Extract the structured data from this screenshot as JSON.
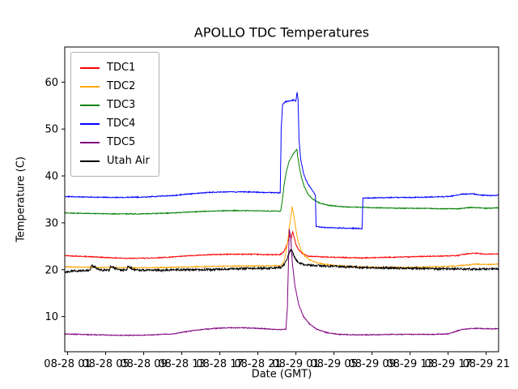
{
  "figure": {
    "title": "APOLLO TDC Temperatures",
    "xlabel": "Date (GMT)",
    "ylabel": "Temperature (C)"
  },
  "chart_data": {
    "type": "line",
    "title": "APOLLO TDC Temperatures",
    "xlabel": "Date (GMT)",
    "ylabel": "Temperature (C)",
    "x_unit": "hours since 08-28 00:00 GMT",
    "xlim": [
      0.7,
      46.3
    ],
    "ylim": [
      2.5,
      67.5
    ],
    "yticks": [
      10,
      20,
      30,
      40,
      50,
      60
    ],
    "xticks": [
      {
        "h": 1,
        "label": "08-28 01"
      },
      {
        "h": 5,
        "label": "08-28 05"
      },
      {
        "h": 9,
        "label": "08-28 09"
      },
      {
        "h": 13,
        "label": "08-28 13"
      },
      {
        "h": 17,
        "label": "08-28 17"
      },
      {
        "h": 21,
        "label": "08-28 21"
      },
      {
        "h": 25,
        "label": "08-29 01"
      },
      {
        "h": 29,
        "label": "08-29 05"
      },
      {
        "h": 33,
        "label": "08-29 09"
      },
      {
        "h": 37,
        "label": "08-29 13"
      },
      {
        "h": 41,
        "label": "08-29 17"
      },
      {
        "h": 45,
        "label": "08-29 21"
      }
    ],
    "grid": false,
    "legend_position": "upper left",
    "series": [
      {
        "name": "TDC1",
        "color": "#ff0000",
        "noise": 0.1,
        "points": [
          [
            0.7,
            23.0
          ],
          [
            2,
            22.9
          ],
          [
            4,
            22.7
          ],
          [
            6,
            22.5
          ],
          [
            8,
            22.4
          ],
          [
            10,
            22.5
          ],
          [
            12,
            22.7
          ],
          [
            14,
            23.0
          ],
          [
            16,
            23.2
          ],
          [
            18,
            23.3
          ],
          [
            20,
            23.3
          ],
          [
            22,
            23.2
          ],
          [
            23.3,
            23.2
          ],
          [
            23.7,
            23.8
          ],
          [
            24.0,
            25.0
          ],
          [
            24.2,
            26.3
          ],
          [
            24.35,
            27.4
          ],
          [
            24.5,
            26.6
          ],
          [
            24.65,
            28.1
          ],
          [
            24.8,
            27.0
          ],
          [
            25.0,
            25.3
          ],
          [
            25.3,
            24.2
          ],
          [
            25.7,
            23.4
          ],
          [
            26.3,
            22.9
          ],
          [
            28,
            22.7
          ],
          [
            30,
            22.6
          ],
          [
            32,
            22.5
          ],
          [
            34,
            22.6
          ],
          [
            36,
            22.7
          ],
          [
            38,
            22.8
          ],
          [
            40,
            22.9
          ],
          [
            42,
            23.0
          ],
          [
            43,
            23.4
          ],
          [
            44,
            23.5
          ],
          [
            45,
            23.3
          ],
          [
            46.3,
            23.4
          ]
        ]
      },
      {
        "name": "TDC2",
        "color": "#ffa500",
        "noise": 0.1,
        "points": [
          [
            0.7,
            20.6
          ],
          [
            4,
            20.5
          ],
          [
            8,
            20.4
          ],
          [
            12,
            20.5
          ],
          [
            16,
            20.7
          ],
          [
            20,
            20.8
          ],
          [
            22,
            20.8
          ],
          [
            23.4,
            20.9
          ],
          [
            23.8,
            22.0
          ],
          [
            24.1,
            25.5
          ],
          [
            24.3,
            29.0
          ],
          [
            24.45,
            31.0
          ],
          [
            24.6,
            33.4
          ],
          [
            24.72,
            32.3
          ],
          [
            24.85,
            30.5
          ],
          [
            25.0,
            28.5
          ],
          [
            25.2,
            26.3
          ],
          [
            25.5,
            24.3
          ],
          [
            25.9,
            23.0
          ],
          [
            26.5,
            22.0
          ],
          [
            27.3,
            21.4
          ],
          [
            29,
            20.9
          ],
          [
            31,
            20.7
          ],
          [
            33,
            20.5
          ],
          [
            35,
            20.5
          ],
          [
            37,
            20.5
          ],
          [
            39,
            20.6
          ],
          [
            41,
            20.7
          ],
          [
            43,
            21.0
          ],
          [
            44,
            21.2
          ],
          [
            45,
            21.1
          ],
          [
            46.3,
            21.2
          ]
        ]
      },
      {
        "name": "TDC3",
        "color": "#008000",
        "noise": 0.09,
        "points": [
          [
            0.7,
            32.1
          ],
          [
            3,
            32.0
          ],
          [
            6,
            31.9
          ],
          [
            9,
            31.9
          ],
          [
            12,
            32.1
          ],
          [
            14,
            32.3
          ],
          [
            16,
            32.5
          ],
          [
            18,
            32.6
          ],
          [
            20,
            32.6
          ],
          [
            22,
            32.5
          ],
          [
            23.4,
            32.5
          ],
          [
            23.55,
            34.5
          ],
          [
            23.75,
            38.0
          ],
          [
            24.0,
            41.0
          ],
          [
            24.3,
            43.2
          ],
          [
            24.6,
            44.3
          ],
          [
            24.9,
            45.2
          ],
          [
            25.1,
            45.7
          ],
          [
            25.2,
            44.0
          ],
          [
            25.35,
            42.0
          ],
          [
            25.6,
            39.5
          ],
          [
            25.9,
            37.6
          ],
          [
            26.3,
            36.0
          ],
          [
            26.8,
            35.0
          ],
          [
            27.5,
            34.2
          ],
          [
            28.5,
            33.7
          ],
          [
            30,
            33.4
          ],
          [
            32,
            33.3
          ],
          [
            34,
            33.2
          ],
          [
            36,
            33.1
          ],
          [
            38,
            33.1
          ],
          [
            40,
            33.0
          ],
          [
            42,
            33.0
          ],
          [
            43.5,
            33.3
          ],
          [
            45,
            33.1
          ],
          [
            46.3,
            33.2
          ]
        ]
      },
      {
        "name": "TDC4",
        "color": "#0000ff",
        "noise": 0.1,
        "points": [
          [
            0.7,
            35.6
          ],
          [
            3,
            35.5
          ],
          [
            6,
            35.4
          ],
          [
            9,
            35.5
          ],
          [
            12,
            35.8
          ],
          [
            14,
            36.2
          ],
          [
            16,
            36.5
          ],
          [
            18,
            36.6
          ],
          [
            20,
            36.6
          ],
          [
            21.5,
            36.5
          ],
          [
            23.0,
            36.4
          ],
          [
            23.35,
            36.4
          ],
          [
            23.45,
            50.0
          ],
          [
            23.6,
            55.3
          ],
          [
            23.9,
            55.8
          ],
          [
            24.3,
            56.0
          ],
          [
            24.7,
            56.2
          ],
          [
            25.0,
            56.0
          ],
          [
            25.12,
            57.8
          ],
          [
            25.22,
            56.5
          ],
          [
            25.32,
            48.0
          ],
          [
            25.5,
            43.5
          ],
          [
            25.8,
            40.5
          ],
          [
            26.2,
            38.5
          ],
          [
            26.7,
            37.0
          ],
          [
            27.05,
            35.9
          ],
          [
            27.12,
            29.2
          ],
          [
            28,
            29.0
          ],
          [
            29.5,
            28.9
          ],
          [
            31,
            28.8
          ],
          [
            31.95,
            28.8
          ],
          [
            32.05,
            35.3
          ],
          [
            33,
            35.3
          ],
          [
            35,
            35.4
          ],
          [
            37,
            35.4
          ],
          [
            39,
            35.5
          ],
          [
            41,
            35.6
          ],
          [
            42.5,
            36.1
          ],
          [
            43.5,
            36.2
          ],
          [
            44.5,
            35.9
          ],
          [
            45.5,
            35.8
          ],
          [
            46.3,
            35.9
          ]
        ]
      },
      {
        "name": "TDC5",
        "color": "#800080",
        "noise": 0.09,
        "points": [
          [
            0.7,
            6.3
          ],
          [
            2,
            6.2
          ],
          [
            4,
            6.1
          ],
          [
            6,
            6.0
          ],
          [
            8,
            6.0
          ],
          [
            10,
            6.1
          ],
          [
            12,
            6.3
          ],
          [
            13.5,
            6.8
          ],
          [
            15,
            7.2
          ],
          [
            16.5,
            7.5
          ],
          [
            18,
            7.6
          ],
          [
            19.5,
            7.6
          ],
          [
            21,
            7.5
          ],
          [
            22.5,
            7.3
          ],
          [
            23.5,
            7.2
          ],
          [
            23.95,
            7.3
          ],
          [
            24.1,
            12.0
          ],
          [
            24.3,
            28.6
          ],
          [
            24.45,
            27.0
          ],
          [
            24.6,
            22.0
          ],
          [
            24.9,
            16.5
          ],
          [
            25.3,
            12.5
          ],
          [
            25.8,
            10.0
          ],
          [
            26.4,
            8.5
          ],
          [
            27.2,
            7.3
          ],
          [
            28.2,
            6.6
          ],
          [
            29.5,
            6.2
          ],
          [
            31,
            6.1
          ],
          [
            33,
            6.1
          ],
          [
            35,
            6.2
          ],
          [
            37,
            6.2
          ],
          [
            39,
            6.2
          ],
          [
            41,
            6.3
          ],
          [
            42.5,
            7.3
          ],
          [
            44,
            7.5
          ],
          [
            45,
            7.4
          ],
          [
            46.3,
            7.4
          ]
        ]
      },
      {
        "name": "Utah Air",
        "color": "#000000",
        "noise": 0.22,
        "points": [
          [
            0.7,
            19.5
          ],
          [
            1.5,
            19.7
          ],
          [
            2.5,
            19.8
          ],
          [
            3.4,
            19.8
          ],
          [
            3.5,
            21.0
          ],
          [
            4.3,
            20.0
          ],
          [
            5.4,
            19.8
          ],
          [
            5.5,
            20.8
          ],
          [
            6.3,
            20.0
          ],
          [
            7.2,
            19.9
          ],
          [
            7.3,
            20.6
          ],
          [
            8.1,
            20.0
          ],
          [
            9,
            19.9
          ],
          [
            11,
            19.9
          ],
          [
            13,
            20.0
          ],
          [
            15,
            20.0
          ],
          [
            17,
            20.1
          ],
          [
            19,
            20.2
          ],
          [
            21,
            20.3
          ],
          [
            22.5,
            20.3
          ],
          [
            23.5,
            20.5
          ],
          [
            23.9,
            21.5
          ],
          [
            24.2,
            23.0
          ],
          [
            24.4,
            24.0
          ],
          [
            24.55,
            24.2
          ],
          [
            24.7,
            23.4
          ],
          [
            24.9,
            22.4
          ],
          [
            25.15,
            21.8
          ],
          [
            25.5,
            21.3
          ],
          [
            26.0,
            21.0
          ],
          [
            28,
            20.8
          ],
          [
            30,
            20.6
          ],
          [
            32,
            20.5
          ],
          [
            34,
            20.4
          ],
          [
            36,
            20.3
          ],
          [
            38,
            20.3
          ],
          [
            40,
            20.2
          ],
          [
            42,
            20.2
          ],
          [
            44,
            20.1
          ],
          [
            46.3,
            20.2
          ]
        ]
      }
    ]
  }
}
